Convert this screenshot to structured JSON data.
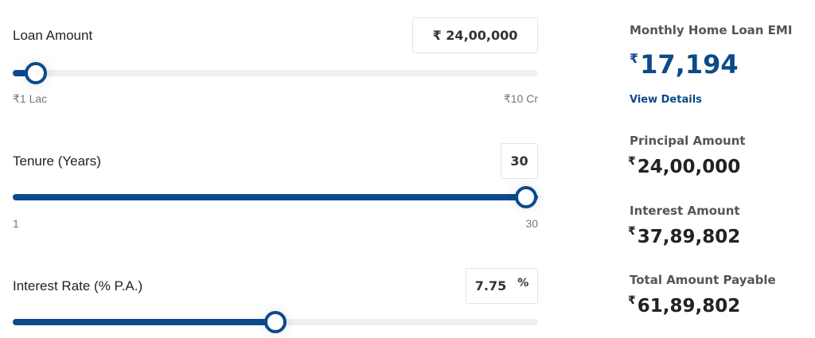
{
  "sliders": [
    {
      "label": "Loan Amount",
      "input": "₹ 24,00,000",
      "min_label": "₹1 Lac",
      "max_label": "₹10 Cr"
    },
    {
      "label": "Tenure (Years)",
      "input": "30",
      "min_label": "1",
      "max_label": "30"
    },
    {
      "label": "Interest Rate (% P.A.)",
      "input": "7.75",
      "unit": "%"
    }
  ],
  "summary": {
    "emi": {
      "label": "Monthly Home Loan EMI",
      "currency": "₹",
      "amount": "17,194",
      "link": "View Details"
    },
    "items": [
      {
        "label": "Principal Amount",
        "currency": "₹",
        "amount": "24,00,000"
      },
      {
        "label": "Interest Amount",
        "currency": "₹",
        "amount": "37,89,802"
      },
      {
        "label": "Total Amount Payable",
        "currency": "₹",
        "amount": "61,89,802"
      }
    ]
  }
}
